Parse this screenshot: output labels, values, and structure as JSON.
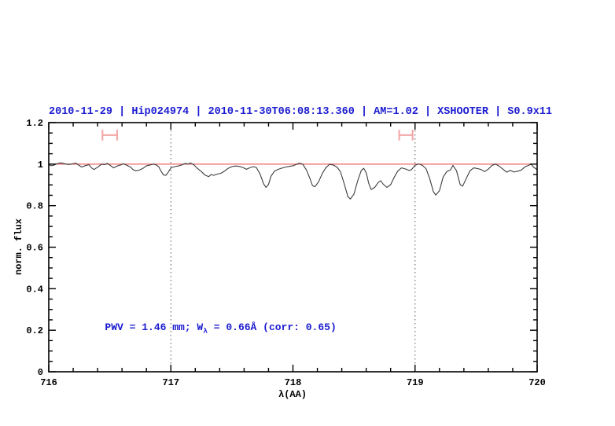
{
  "figure": {
    "background": "#ffffff"
  },
  "chart_data": {
    "type": "line",
    "title": "2010-11-29 | Hip024974 | 2010-11-30T06:08:13.360 | AM=1.02 | XSHOOTER | S0.9x11",
    "title_color": "#1b1bd1",
    "xlabel": "λ(AA)",
    "ylabel": "norm. flux",
    "xlim": [
      716,
      720
    ],
    "ylim": [
      0,
      1.2
    ],
    "x_major_ticks": [
      716,
      717,
      718,
      719,
      720
    ],
    "x_tick_labels": [
      "716",
      "717",
      "718",
      "719",
      "720"
    ],
    "x_minor_step": 0.2,
    "y_major_ticks": [
      0,
      0.2,
      0.4,
      0.6,
      0.8,
      1,
      1.2
    ],
    "y_tick_labels": [
      "0",
      "0.2",
      "0.4",
      "0.6",
      "0.8",
      "1",
      "1.2"
    ],
    "y_minor_step": 0.05,
    "legend": "none",
    "grid": "off",
    "dotted_vlines_x": [
      717,
      719
    ],
    "dotted_vline_color": "#555555",
    "continuum_line_y": 1.0,
    "continuum_line_color": "#ee7070",
    "band_markers": [
      {
        "x_min": 716.44,
        "x_max": 716.56,
        "y": 1.14,
        "cap_half_height": 0.026,
        "color": "#f2a5a5"
      },
      {
        "x_min": 718.87,
        "x_max": 718.98,
        "y": 1.14,
        "cap_half_height": 0.026,
        "color": "#f2a5a5"
      }
    ],
    "annotation": {
      "prefix": "PWV = 1.46 mm; W",
      "sub": "λ",
      "suffix": " = 0.66Å (corr: 0.65)",
      "x": 716.46,
      "y": 0.205,
      "color": "#1b1bd1"
    },
    "series": [
      {
        "name": "normalized-spectrum",
        "color": "#3c3c3c",
        "points": [
          [
            716.0,
            0.998
          ],
          [
            716.02,
            0.992
          ],
          [
            716.04,
            0.995
          ],
          [
            716.07,
            1.003
          ],
          [
            716.1,
            1.006
          ],
          [
            716.13,
            1.002
          ],
          [
            716.16,
            0.998
          ],
          [
            716.19,
            1.001
          ],
          [
            716.22,
            1.005
          ],
          [
            716.24,
            0.997
          ],
          [
            716.27,
            0.986
          ],
          [
            716.3,
            0.993
          ],
          [
            716.33,
            0.997
          ],
          [
            716.35,
            0.982
          ],
          [
            716.37,
            0.974
          ],
          [
            716.4,
            0.985
          ],
          [
            716.43,
            0.999
          ],
          [
            716.46,
            0.998
          ],
          [
            716.48,
            1.004
          ],
          [
            716.51,
            0.991
          ],
          [
            716.53,
            0.982
          ],
          [
            716.56,
            0.991
          ],
          [
            716.59,
            0.996
          ],
          [
            716.61,
            1.002
          ],
          [
            716.64,
            0.994
          ],
          [
            716.67,
            0.986
          ],
          [
            716.69,
            0.974
          ],
          [
            716.71,
            0.968
          ],
          [
            716.74,
            0.971
          ],
          [
            716.77,
            0.979
          ],
          [
            716.8,
            0.992
          ],
          [
            716.83,
            0.996
          ],
          [
            716.86,
            1.0
          ],
          [
            716.88,
            0.996
          ],
          [
            716.9,
            0.988
          ],
          [
            716.92,
            0.966
          ],
          [
            716.94,
            0.948
          ],
          [
            716.96,
            0.946
          ],
          [
            716.98,
            0.962
          ],
          [
            717.0,
            0.982
          ],
          [
            717.03,
            0.988
          ],
          [
            717.06,
            0.991
          ],
          [
            717.09,
            0.996
          ],
          [
            717.12,
            1.004
          ],
          [
            717.14,
            1.0
          ],
          [
            717.16,
            1.006
          ],
          [
            717.19,
            0.996
          ],
          [
            717.22,
            0.978
          ],
          [
            717.25,
            0.964
          ],
          [
            717.28,
            0.947
          ],
          [
            717.31,
            0.94
          ],
          [
            717.33,
            0.95
          ],
          [
            717.35,
            0.946
          ],
          [
            717.38,
            0.952
          ],
          [
            717.41,
            0.956
          ],
          [
            717.44,
            0.967
          ],
          [
            717.47,
            0.98
          ],
          [
            717.5,
            0.988
          ],
          [
            717.53,
            0.991
          ],
          [
            717.56,
            0.989
          ],
          [
            717.59,
            0.984
          ],
          [
            717.62,
            0.975
          ],
          [
            717.65,
            0.984
          ],
          [
            717.68,
            0.988
          ],
          [
            717.7,
            0.984
          ],
          [
            717.73,
            0.953
          ],
          [
            717.76,
            0.905
          ],
          [
            717.78,
            0.888
          ],
          [
            717.8,
            0.902
          ],
          [
            717.82,
            0.942
          ],
          [
            717.85,
            0.967
          ],
          [
            717.88,
            0.975
          ],
          [
            717.91,
            0.981
          ],
          [
            717.94,
            0.986
          ],
          [
            717.97,
            0.989
          ],
          [
            718.0,
            0.992
          ],
          [
            718.03,
            0.999
          ],
          [
            718.05,
            1.005
          ],
          [
            718.08,
            1.0
          ],
          [
            718.11,
            0.972
          ],
          [
            718.14,
            0.93
          ],
          [
            718.16,
            0.897
          ],
          [
            718.18,
            0.891
          ],
          [
            718.21,
            0.915
          ],
          [
            718.24,
            0.955
          ],
          [
            718.27,
            0.983
          ],
          [
            718.3,
            0.999
          ],
          [
            718.33,
            0.996
          ],
          [
            718.36,
            0.986
          ],
          [
            718.39,
            0.963
          ],
          [
            718.42,
            0.905
          ],
          [
            718.45,
            0.843
          ],
          [
            718.47,
            0.832
          ],
          [
            718.5,
            0.856
          ],
          [
            718.53,
            0.92
          ],
          [
            718.56,
            0.97
          ],
          [
            718.58,
            0.98
          ],
          [
            718.6,
            0.958
          ],
          [
            718.62,
            0.908
          ],
          [
            718.64,
            0.878
          ],
          [
            718.67,
            0.888
          ],
          [
            718.7,
            0.913
          ],
          [
            718.72,
            0.92
          ],
          [
            718.74,
            0.903
          ],
          [
            718.77,
            0.888
          ],
          [
            718.8,
            0.901
          ],
          [
            718.83,
            0.938
          ],
          [
            718.86,
            0.968
          ],
          [
            718.89,
            0.982
          ],
          [
            718.92,
            0.977
          ],
          [
            718.95,
            0.97
          ],
          [
            718.97,
            0.973
          ],
          [
            719.0,
            0.995
          ],
          [
            719.03,
            1.001
          ],
          [
            719.06,
            0.994
          ],
          [
            719.09,
            0.978
          ],
          [
            719.12,
            0.93
          ],
          [
            719.15,
            0.868
          ],
          [
            719.17,
            0.851
          ],
          [
            719.2,
            0.872
          ],
          [
            719.23,
            0.938
          ],
          [
            719.26,
            0.964
          ],
          [
            719.29,
            0.972
          ],
          [
            719.31,
            0.994
          ],
          [
            719.34,
            0.968
          ],
          [
            719.37,
            0.901
          ],
          [
            719.39,
            0.894
          ],
          [
            719.42,
            0.932
          ],
          [
            719.45,
            0.968
          ],
          [
            719.48,
            0.982
          ],
          [
            719.51,
            0.979
          ],
          [
            719.54,
            0.974
          ],
          [
            719.57,
            0.964
          ],
          [
            719.6,
            0.976
          ],
          [
            719.63,
            0.994
          ],
          [
            719.66,
            1.0
          ],
          [
            719.69,
            0.99
          ],
          [
            719.72,
            0.976
          ],
          [
            719.75,
            0.961
          ],
          [
            719.78,
            0.97
          ],
          [
            719.81,
            0.962
          ],
          [
            719.84,
            0.966
          ],
          [
            719.87,
            0.971
          ],
          [
            719.9,
            0.987
          ],
          [
            719.93,
            0.994
          ],
          [
            719.95,
            1.0
          ],
          [
            719.97,
            0.986
          ],
          [
            720.0,
            0.973
          ]
        ]
      }
    ]
  }
}
